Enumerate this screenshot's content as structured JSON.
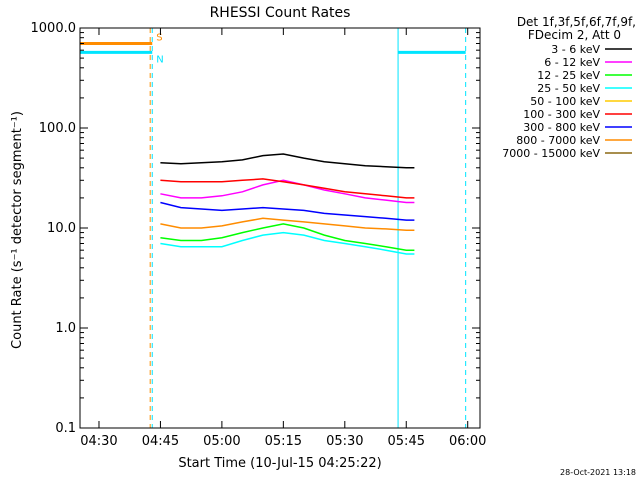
{
  "chart_data": {
    "type": "line",
    "title": "RHESSI Count Rates",
    "xlabel": "Start Time (10-Jul-15 04:25:22)",
    "ylabel": "Count Rate (s⁻¹ detector segment⁻¹)",
    "yscale": "log",
    "ylim": [
      0.1,
      1000
    ],
    "xlim": [
      "04:25:22",
      "06:03:00"
    ],
    "x_ticks": [
      "04:30",
      "04:45",
      "05:00",
      "05:15",
      "05:30",
      "05:45",
      "06:00"
    ],
    "y_ticks": [
      "0.1",
      "1.0",
      "10.0",
      "100.0",
      "1000.0"
    ],
    "legend_position": "top-right outside",
    "legend_header": [
      "Det 1f,3f,5f,6f,7f,9f,",
      "FDecim 2, Att 0"
    ],
    "timestamp": "28-Oct-2021 13:18",
    "series": [
      {
        "name": "3 - 6 keV",
        "color": "#000000",
        "x": [
          "04:45",
          "04:50",
          "04:55",
          "05:00",
          "05:05",
          "05:10",
          "05:15",
          "05:20",
          "05:25",
          "05:30",
          "05:35",
          "05:40",
          "05:45",
          "05:47"
        ],
        "values": [
          45,
          44,
          45,
          46,
          48,
          53,
          55,
          50,
          46,
          44,
          42,
          41,
          40,
          40
        ]
      },
      {
        "name": "6 - 12 keV",
        "color": "#ff00ff",
        "x": [
          "04:45",
          "04:50",
          "04:55",
          "05:00",
          "05:05",
          "05:10",
          "05:15",
          "05:20",
          "05:25",
          "05:30",
          "05:35",
          "05:40",
          "05:45",
          "05:47"
        ],
        "values": [
          22,
          20,
          20,
          21,
          23,
          27,
          30,
          27,
          24,
          22,
          20,
          19,
          18,
          18
        ]
      },
      {
        "name": "12 - 25 keV",
        "color": "#00ff00",
        "x": [
          "04:45",
          "04:50",
          "04:55",
          "05:00",
          "05:05",
          "05:10",
          "05:15",
          "05:20",
          "05:25",
          "05:30",
          "05:35",
          "05:40",
          "05:45",
          "05:47"
        ],
        "values": [
          8,
          7.5,
          7.5,
          8,
          9,
          10,
          11,
          10,
          8.5,
          7.5,
          7,
          6.5,
          6,
          6
        ]
      },
      {
        "name": "25 - 50 keV",
        "color": "#00ffff",
        "x": [
          "04:45",
          "04:50",
          "04:55",
          "05:00",
          "05:05",
          "05:10",
          "05:15",
          "05:20",
          "05:25",
          "05:30",
          "05:35",
          "05:40",
          "05:45",
          "05:47"
        ],
        "values": [
          7,
          6.5,
          6.5,
          6.5,
          7.5,
          8.5,
          9,
          8.5,
          7.5,
          7,
          6.5,
          6,
          5.5,
          5.5
        ]
      },
      {
        "name": "50 - 100 keV",
        "color": "#ffcc00",
        "x": [],
        "values": []
      },
      {
        "name": "100 - 300 keV",
        "color": "#ff0000",
        "x": [
          "04:45",
          "04:50",
          "04:55",
          "05:00",
          "05:05",
          "05:10",
          "05:15",
          "05:20",
          "05:25",
          "05:30",
          "05:35",
          "05:40",
          "05:45",
          "05:47"
        ],
        "values": [
          30,
          29,
          29,
          29,
          30,
          31,
          29,
          27,
          25,
          23,
          22,
          21,
          20,
          20
        ]
      },
      {
        "name": "300 - 800 keV",
        "color": "#0000ff",
        "x": [
          "04:45",
          "04:50",
          "04:55",
          "05:00",
          "05:05",
          "05:10",
          "05:15",
          "05:20",
          "05:25",
          "05:30",
          "05:35",
          "05:40",
          "05:45",
          "05:47"
        ],
        "values": [
          18,
          16,
          15.5,
          15,
          15.5,
          16,
          15.5,
          15,
          14,
          13.5,
          13,
          12.5,
          12,
          12
        ]
      },
      {
        "name": "800 - 7000 keV",
        "color": "#ff8c00",
        "x": [
          "04:45",
          "04:50",
          "04:55",
          "05:00",
          "05:05",
          "05:10",
          "05:15",
          "05:20",
          "05:25",
          "05:30",
          "05:35",
          "05:40",
          "05:45",
          "05:47"
        ],
        "values": [
          11,
          10,
          10,
          10.5,
          11.5,
          12.5,
          12,
          11.5,
          11,
          10.5,
          10,
          9.8,
          9.5,
          9.5
        ]
      },
      {
        "name": "7000 - 15000 keV",
        "color": "#8b6914",
        "x": [],
        "values": []
      }
    ],
    "flags": [
      {
        "label": "S",
        "color": "#ff8c00",
        "value": 700,
        "segments": [
          [
            "04:25:22",
            "04:43:00"
          ]
        ]
      },
      {
        "label": "N",
        "color": "#00e5ff",
        "value": 570,
        "segments": [
          [
            "04:25:22",
            "04:43:00"
          ],
          [
            "05:43:00",
            "05:59:30"
          ]
        ]
      }
    ],
    "markers": [
      {
        "time": "04:25:22",
        "color": "#00e5ff",
        "style": "solid"
      },
      {
        "time": "04:42:30",
        "color": "#ff8c00",
        "style": "dashed"
      },
      {
        "time": "04:43:00",
        "color": "#00e5ff",
        "style": "dashed"
      },
      {
        "time": "05:43:00",
        "color": "#00e5ff",
        "style": "solid"
      },
      {
        "time": "05:59:30",
        "color": "#00e5ff",
        "style": "dashed"
      }
    ]
  }
}
